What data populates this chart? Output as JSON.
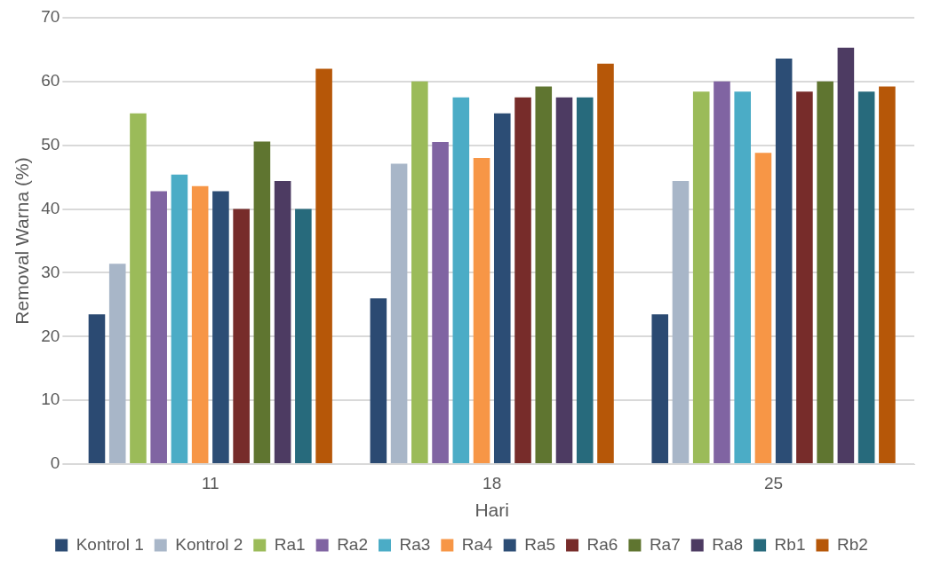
{
  "chart_data": {
    "type": "bar",
    "xlabel": "Hari",
    "ylabel": "Removal Warna (%)",
    "categories": [
      "11",
      "18",
      "25"
    ],
    "series": [
      {
        "name": "Kontrol 1",
        "color": "#2b4a72",
        "values": [
          23.5,
          26,
          23.5
        ]
      },
      {
        "name": "Kontrol 2",
        "color": "#a8b6c8",
        "values": [
          31.4,
          47.1,
          44.4
        ]
      },
      {
        "name": "Ra1",
        "color": "#9bbb59",
        "values": [
          55,
          60,
          58.4
        ]
      },
      {
        "name": "Ra2",
        "color": "#8064a2",
        "values": [
          42.8,
          50.5,
          60
        ]
      },
      {
        "name": "Ra3",
        "color": "#4bacc6",
        "values": [
          45.4,
          57.5,
          58.4
        ]
      },
      {
        "name": "Ra4",
        "color": "#f79646",
        "values": [
          43.6,
          48,
          48.8
        ]
      },
      {
        "name": "Ra5",
        "color": "#2c4d75",
        "values": [
          42.8,
          55,
          63.6
        ]
      },
      {
        "name": "Ra6",
        "color": "#772c2a",
        "values": [
          40,
          57.5,
          58.4
        ]
      },
      {
        "name": "Ra7",
        "color": "#5f7530",
        "values": [
          50.6,
          59.2,
          60
        ]
      },
      {
        "name": "Ra8",
        "color": "#4d3b62",
        "values": [
          44.4,
          57.5,
          65.3
        ]
      },
      {
        "name": "Rb1",
        "color": "#276a7c",
        "values": [
          40,
          57.5,
          58.4
        ]
      },
      {
        "name": "Rb2",
        "color": "#b65708",
        "values": [
          62,
          62.8,
          59.2
        ]
      }
    ],
    "ylim": [
      0,
      70
    ],
    "yticks": [
      0,
      10,
      20,
      30,
      40,
      50,
      60,
      70
    ],
    "grid": "y",
    "legend": "bottom"
  }
}
